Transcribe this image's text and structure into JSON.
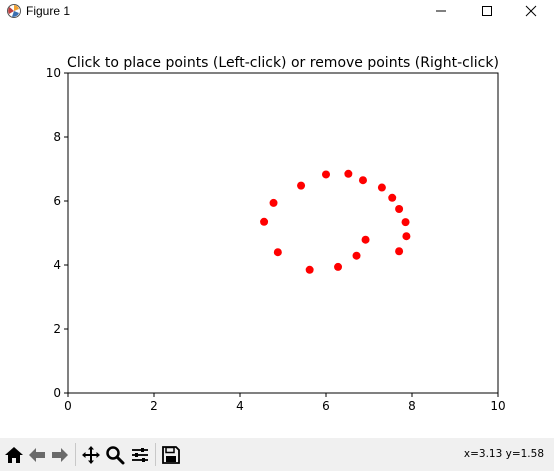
{
  "window": {
    "title": "Figure 1",
    "controls": [
      "minimize",
      "maximize",
      "close"
    ]
  },
  "chart_data": {
    "type": "scatter",
    "title": "Click to place points (Left-click) or remove points (Right-click)",
    "xlabel": "",
    "ylabel": "",
    "xlim": [
      0,
      10
    ],
    "ylim": [
      0,
      10
    ],
    "xticks": [
      0,
      2,
      4,
      6,
      8,
      10
    ],
    "yticks": [
      0,
      2,
      4,
      6,
      8,
      10
    ],
    "xtick_labels": [
      "0",
      "2",
      "4",
      "6",
      "8",
      "10"
    ],
    "ytick_labels": [
      "0",
      "2",
      "4",
      "6",
      "8",
      "10"
    ],
    "grid": false,
    "marker_color": "#ff0000",
    "series": [
      {
        "points": [
          [
            4.56,
            5.35
          ],
          [
            4.78,
            5.94
          ],
          [
            4.88,
            4.4
          ],
          [
            5.42,
            6.48
          ],
          [
            5.62,
            3.85
          ],
          [
            6.0,
            6.83
          ],
          [
            6.28,
            3.94
          ],
          [
            6.52,
            6.85
          ],
          [
            6.71,
            4.29
          ],
          [
            6.86,
            6.65
          ],
          [
            6.92,
            4.79
          ],
          [
            7.3,
            6.42
          ],
          [
            7.54,
            6.1
          ],
          [
            7.7,
            5.75
          ],
          [
            7.7,
            4.43
          ],
          [
            7.85,
            5.34
          ],
          [
            7.87,
            4.9
          ]
        ]
      }
    ]
  },
  "toolbar": {
    "buttons": [
      {
        "icon": "home-icon"
      },
      {
        "icon": "back-arrow-icon"
      },
      {
        "icon": "forward-arrow-icon"
      },
      {
        "icon": "pan-icon"
      },
      {
        "icon": "zoom-icon"
      },
      {
        "icon": "configure-subplots-icon"
      },
      {
        "icon": "save-icon"
      }
    ],
    "coords": "x=3.13 y=1.58"
  }
}
